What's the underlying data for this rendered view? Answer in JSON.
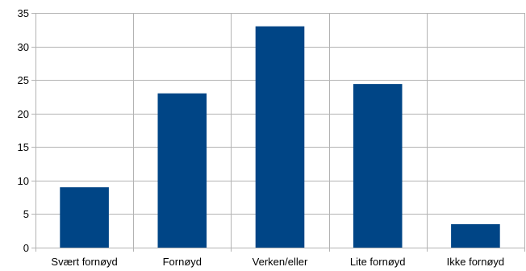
{
  "chart_data": {
    "type": "bar",
    "categories": [
      "Svært fornøyd",
      "Fornøyd",
      "Verken/eller",
      "Lite fornøyd",
      "Ikke fornøyd"
    ],
    "values": [
      9,
      23,
      33,
      24.4,
      3.5
    ],
    "ylim": [
      0,
      35
    ],
    "yticks": [
      0,
      5,
      10,
      15,
      20,
      25,
      30,
      35
    ],
    "grid": true,
    "legend": "none",
    "colors": {
      "bar": "#004586",
      "grid": "#b3b3b3",
      "axis": "#b3b3b3",
      "text": "#000000"
    }
  }
}
